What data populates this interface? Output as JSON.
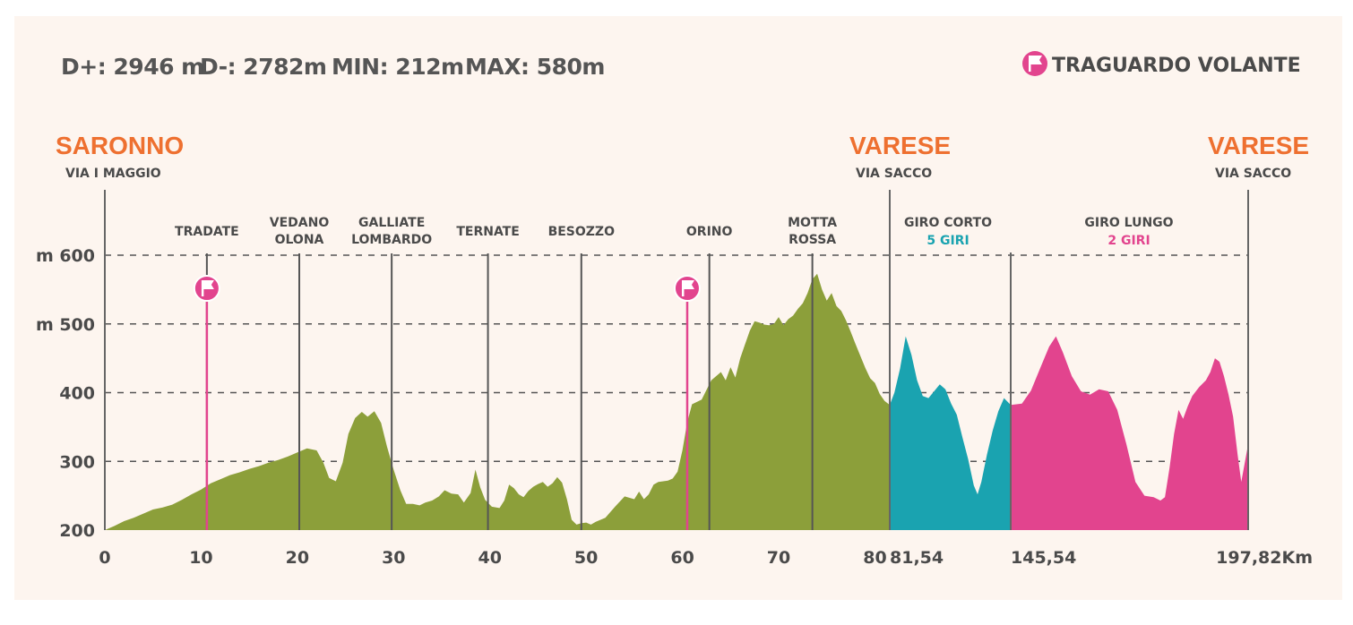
{
  "colors": {
    "background": "#fdf5ef",
    "segment_1": "#8c9f3a",
    "segment_2": "#1aa3b0",
    "segment_3": "#e2448e",
    "city": "#ee7030",
    "grid": "#555555",
    "text": "#4a4a4a"
  },
  "stats": {
    "d_plus": "D+: 2946 m",
    "d_minus": "D-: 2782m",
    "min": "MIN: 212m",
    "max": "MAX: 580m"
  },
  "legend": {
    "icon": "flag-icon",
    "label": "TRAGUARDO VOLANTE"
  },
  "cities": {
    "start": {
      "name": "SARONNO",
      "street": "VIA I MAGGIO"
    },
    "mid": {
      "name": "VARESE",
      "street": "VIA SACCO"
    },
    "end": {
      "name": "VARESE",
      "street": "VIA SACCO"
    }
  },
  "circuits": {
    "short": {
      "name": "GIRO CORTO",
      "laps": "5 GIRI"
    },
    "long": {
      "name": "GIRO LUNGO",
      "laps": "2 GIRI"
    }
  },
  "chart_data": {
    "type": "area",
    "ylabel_unit": "m",
    "ylim": [
      200,
      600
    ],
    "y_ticks": [
      {
        "label": "600",
        "unit": "m",
        "value": 600
      },
      {
        "label": "500",
        "unit": "m",
        "value": 500
      },
      {
        "label": "400",
        "unit": "",
        "value": 400
      },
      {
        "label": "300",
        "unit": "",
        "value": 300
      },
      {
        "label": "200",
        "unit": "",
        "value": 200
      }
    ],
    "x_ticks": [
      {
        "label": "0",
        "km": 0
      },
      {
        "label": "10",
        "km": 10
      },
      {
        "label": "20",
        "km": 20
      },
      {
        "label": "30",
        "km": 30
      },
      {
        "label": "40",
        "km": 40
      },
      {
        "label": "50",
        "km": 50
      },
      {
        "label": "60",
        "km": 60
      },
      {
        "label": "70",
        "km": 70
      },
      {
        "label": "80",
        "km": 80
      }
    ],
    "segment_boundaries": [
      {
        "label": "81,54",
        "km": 81.54
      },
      {
        "label": "145,54",
        "km": 145.54
      },
      {
        "label": "197,82Km",
        "km": 197.82
      }
    ],
    "places": [
      {
        "lines": [
          "TRADATE"
        ],
        "km": 10.6
      },
      {
        "lines": [
          "VEDANO",
          "OLONA"
        ],
        "km": 20.2
      },
      {
        "lines": [
          "GALLIATE",
          "LOMBARDO"
        ],
        "km": 29.8
      },
      {
        "lines": [
          "TERNATE"
        ],
        "km": 39.8
      },
      {
        "lines": [
          "BESOZZO"
        ],
        "km": 49.5
      },
      {
        "lines": [
          "ORINO"
        ],
        "km": 62.8
      },
      {
        "lines": [
          "MOTTA",
          "ROSSA"
        ],
        "km": 73.5
      }
    ],
    "sprints_km": [
      10.6,
      60.5
    ],
    "series": [
      {
        "color": "#8c9f3a",
        "points": [
          [
            0,
            200
          ],
          [
            1,
            206
          ],
          [
            2,
            213
          ],
          [
            3,
            218
          ],
          [
            4,
            224
          ],
          [
            5,
            230
          ],
          [
            6,
            233
          ],
          [
            7,
            237
          ],
          [
            8,
            244
          ],
          [
            9,
            252
          ],
          [
            10,
            259
          ],
          [
            11,
            268
          ],
          [
            12,
            274
          ],
          [
            13,
            280
          ],
          [
            14,
            284
          ],
          [
            15,
            289
          ],
          [
            16,
            293
          ],
          [
            17,
            298
          ],
          [
            18,
            302
          ],
          [
            19,
            307
          ],
          [
            20,
            313
          ],
          [
            21,
            319
          ],
          [
            22,
            316
          ],
          [
            22.7,
            298
          ],
          [
            23.3,
            276
          ],
          [
            24,
            271
          ],
          [
            24.7,
            298
          ],
          [
            25.3,
            340
          ],
          [
            26,
            363
          ],
          [
            26.7,
            372
          ],
          [
            27.3,
            365
          ],
          [
            28,
            373
          ],
          [
            28.7,
            356
          ],
          [
            29.3,
            322
          ],
          [
            30,
            288
          ],
          [
            30.7,
            258
          ],
          [
            31.3,
            238
          ],
          [
            32,
            238
          ],
          [
            32.7,
            236
          ],
          [
            33.3,
            240
          ],
          [
            34,
            243
          ],
          [
            34.7,
            249
          ],
          [
            35.3,
            258
          ],
          [
            36,
            253
          ],
          [
            36.7,
            252
          ],
          [
            37.3,
            240
          ],
          [
            38,
            254
          ],
          [
            38.5,
            288
          ],
          [
            39,
            262
          ],
          [
            39.5,
            244
          ],
          [
            40.2,
            234
          ],
          [
            41,
            232
          ],
          [
            41.5,
            243
          ],
          [
            42,
            266
          ],
          [
            42.5,
            261
          ],
          [
            43,
            252
          ],
          [
            43.5,
            248
          ],
          [
            44,
            257
          ],
          [
            44.5,
            263
          ],
          [
            45,
            267
          ],
          [
            45.5,
            270
          ],
          [
            46,
            263
          ],
          [
            46.5,
            268
          ],
          [
            47,
            277
          ],
          [
            47.5,
            269
          ],
          [
            48,
            245
          ],
          [
            48.5,
            215
          ],
          [
            49,
            208
          ],
          [
            49.5,
            210
          ],
          [
            50,
            211
          ],
          [
            50.5,
            208
          ],
          [
            51,
            212
          ],
          [
            52,
            218
          ],
          [
            53,
            234
          ],
          [
            54,
            249
          ],
          [
            55,
            245
          ],
          [
            55.5,
            256
          ],
          [
            56,
            245
          ],
          [
            56.5,
            252
          ],
          [
            57,
            266
          ],
          [
            57.5,
            270
          ],
          [
            58,
            271
          ],
          [
            58.5,
            272
          ],
          [
            59,
            275
          ],
          [
            59.5,
            285
          ],
          [
            60,
            316
          ],
          [
            60.5,
            357
          ],
          [
            61,
            383
          ],
          [
            62,
            390
          ],
          [
            63,
            418
          ],
          [
            64,
            430
          ],
          [
            64.5,
            418
          ],
          [
            65,
            437
          ],
          [
            65.5,
            422
          ],
          [
            66,
            450
          ],
          [
            66.5,
            470
          ],
          [
            67,
            490
          ],
          [
            67.5,
            504
          ],
          [
            68,
            502
          ],
          [
            68.5,
            499
          ],
          [
            69,
            498
          ],
          [
            69.5,
            500
          ],
          [
            70,
            510
          ],
          [
            70.5,
            498
          ],
          [
            71,
            507
          ],
          [
            71.5,
            512
          ],
          [
            72,
            522
          ],
          [
            72.5,
            530
          ],
          [
            73,
            545
          ],
          [
            73.5,
            565
          ],
          [
            74,
            573
          ],
          [
            74.5,
            550
          ],
          [
            75,
            534
          ],
          [
            75.5,
            545
          ],
          [
            76,
            526
          ],
          [
            76.5,
            519
          ],
          [
            77,
            505
          ],
          [
            77.5,
            488
          ],
          [
            78,
            470
          ],
          [
            78.5,
            453
          ],
          [
            79,
            436
          ],
          [
            79.5,
            421
          ],
          [
            80,
            414
          ],
          [
            80.5,
            398
          ],
          [
            81,
            388
          ],
          [
            81.54,
            382
          ]
        ]
      },
      {
        "color": "#1aa3b0",
        "points": [
          [
            81.54,
            382
          ],
          [
            84,
            400
          ],
          [
            87,
            435
          ],
          [
            90,
            482
          ],
          [
            93,
            455
          ],
          [
            96,
            418
          ],
          [
            99,
            395
          ],
          [
            102,
            392
          ],
          [
            105,
            402
          ],
          [
            108,
            412
          ],
          [
            111,
            405
          ],
          [
            114,
            384
          ],
          [
            117,
            368
          ],
          [
            120,
            335
          ],
          [
            123,
            303
          ],
          [
            126,
            265
          ],
          [
            128,
            252
          ],
          [
            130,
            270
          ],
          [
            133,
            310
          ],
          [
            136,
            345
          ],
          [
            139,
            373
          ],
          [
            142,
            392
          ],
          [
            145.54,
            382
          ]
        ]
      },
      {
        "color": "#e2448e",
        "points": [
          [
            145.54,
            382
          ],
          [
            148,
            384
          ],
          [
            150,
            403
          ],
          [
            152,
            435
          ],
          [
            154,
            467
          ],
          [
            155.5,
            482
          ],
          [
            157,
            459
          ],
          [
            159,
            424
          ],
          [
            161,
            402
          ],
          [
            163,
            397
          ],
          [
            165,
            405
          ],
          [
            167,
            402
          ],
          [
            169,
            375
          ],
          [
            171,
            325
          ],
          [
            173,
            270
          ],
          [
            175,
            250
          ],
          [
            177,
            248
          ],
          [
            178.5,
            243
          ],
          [
            179.5,
            248
          ],
          [
            180.5,
            290
          ],
          [
            181.5,
            340
          ],
          [
            182.5,
            375
          ],
          [
            183.5,
            362
          ],
          [
            184.5,
            380
          ],
          [
            185.5,
            395
          ],
          [
            187,
            408
          ],
          [
            188.5,
            418
          ],
          [
            189.5,
            430
          ],
          [
            190.5,
            450
          ],
          [
            191.5,
            445
          ],
          [
            192.5,
            424
          ],
          [
            193.5,
            397
          ],
          [
            194.5,
            365
          ],
          [
            195.5,
            310
          ],
          [
            196.3,
            270
          ],
          [
            197,
            295
          ],
          [
            197.82,
            325
          ]
        ]
      }
    ]
  }
}
